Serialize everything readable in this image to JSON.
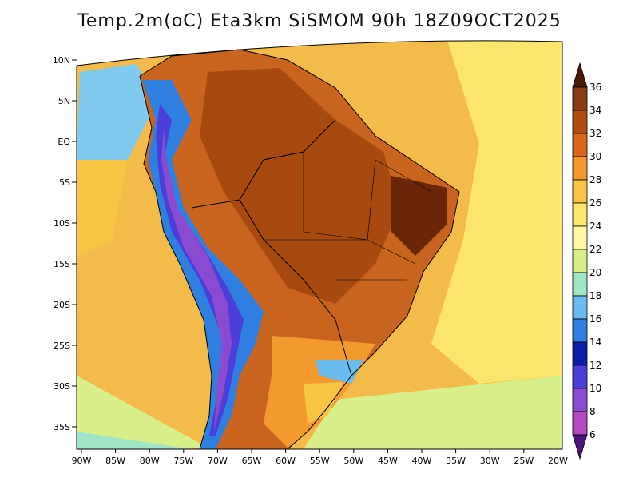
{
  "title": "Temp.2m(oC) Eta3km SiSMOM 90h 18Z09OCT2025",
  "lat_labels": [
    "10N",
    "5N",
    "EQ",
    "5S",
    "10S",
    "15S",
    "20S",
    "25S",
    "30S",
    "35S"
  ],
  "lon_labels": [
    "90W",
    "85W",
    "80W",
    "75W",
    "70W",
    "65W",
    "60W",
    "55W",
    "50W",
    "45W",
    "40W",
    "35W",
    "30W",
    "25W",
    "20W"
  ],
  "colorbar": {
    "labels": [
      "36",
      "34",
      "32",
      "30",
      "28",
      "26",
      "24",
      "22",
      "20",
      "18",
      "16",
      "14",
      "12",
      "10",
      "8",
      "6"
    ],
    "colors": [
      "#5a1e0a",
      "#8b3a12",
      "#b14c10",
      "#d9661a",
      "#f29a2e",
      "#f7c443",
      "#fbe56a",
      "#fdf7a6",
      "#d9f08a",
      "#9fe6c6",
      "#6bbcee",
      "#2e7fe0",
      "#0b1fa6",
      "#4b3fd8",
      "#8a4bd0",
      "#b24ac2",
      "#6e1d86"
    ],
    "arrow_top_color": "#4a1808",
    "arrow_bottom_color": "#4a1478"
  },
  "map": {
    "ocean_color": "#f3bc4a",
    "land_color": "#c8641e"
  }
}
